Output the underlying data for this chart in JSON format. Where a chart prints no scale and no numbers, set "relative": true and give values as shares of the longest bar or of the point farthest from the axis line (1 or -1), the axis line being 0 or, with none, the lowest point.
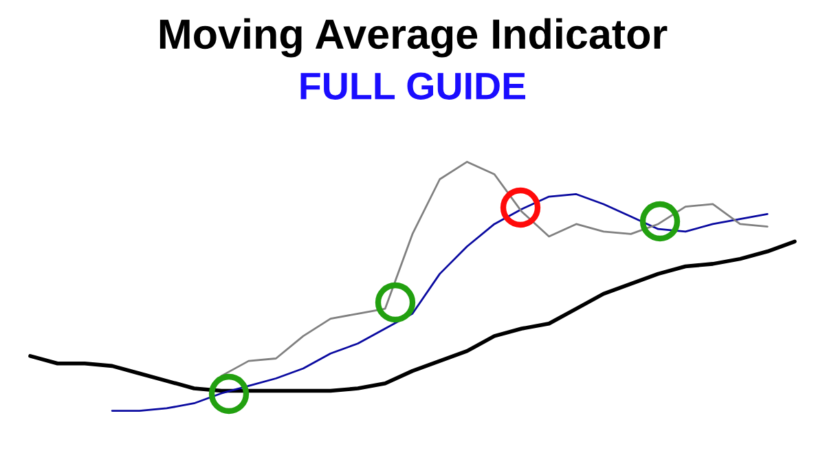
{
  "chart_data": {
    "type": "line",
    "title": "Moving Average Indicator",
    "subtitle": "FULL GUIDE",
    "relative": true,
    "tick_labels": false,
    "categories": [
      null,
      null,
      null,
      null,
      null,
      null,
      null,
      null,
      null,
      null,
      null,
      null,
      null,
      null,
      null,
      null,
      null,
      null,
      null,
      null,
      null,
      null,
      null,
      null,
      null,
      null,
      null,
      null,
      null
    ],
    "series": [
      {
        "color": "#000000",
        "values": [
          0.22,
          0.19,
          0.19,
          0.18,
          0.15,
          0.12,
          0.09,
          0.08,
          0.08,
          0.08,
          0.08,
          0.08,
          0.09,
          0.11,
          0.16,
          0.2,
          0.24,
          0.3,
          0.33,
          0.35,
          0.41,
          0.47,
          0.51,
          0.55,
          0.58,
          0.59,
          0.61,
          0.64,
          0.68
        ]
      },
      {
        "color": "#0a0aa0",
        "values": [
          null,
          null,
          null,
          0.0,
          0.0,
          0.01,
          0.03,
          0.07,
          0.1,
          0.13,
          0.17,
          0.23,
          0.27,
          0.33,
          0.39,
          0.55,
          0.66,
          0.75,
          0.81,
          0.86,
          0.87,
          0.83,
          0.78,
          0.73,
          0.72,
          0.75,
          0.77,
          0.79,
          null
        ]
      },
      {
        "color": "#808080",
        "values": [
          null,
          null,
          null,
          null,
          null,
          null,
          null,
          0.14,
          0.2,
          0.21,
          0.3,
          0.37,
          0.39,
          0.41,
          0.71,
          0.93,
          1.0,
          0.95,
          0.8,
          0.7,
          0.75,
          0.72,
          0.71,
          0.75,
          0.82,
          0.83,
          0.75,
          0.74,
          null
        ]
      }
    ]
  }
}
